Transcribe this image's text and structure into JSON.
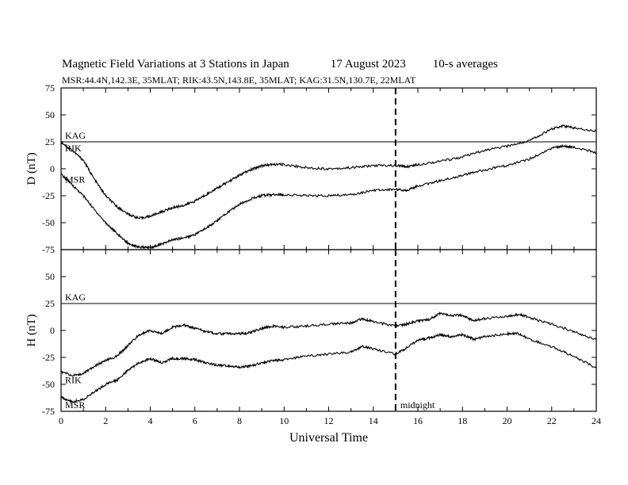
{
  "header": {
    "title": "Magnetic Field Variations at 3 Stations in Japan",
    "date": "17  August   2023",
    "averages": "10-s averages",
    "stations": "MSR:44.4N,142.3E, 35MLAT;  RIK:43.5N,143.8E, 35MLAT;  KAG:31.5N,130.7E, 22MLAT"
  },
  "chart_data": [
    {
      "type": "line",
      "ylabel": "D (nT)",
      "ylim": [
        -75,
        75
      ],
      "yticks": [
        -75,
        -50,
        -25,
        0,
        25,
        50,
        75
      ],
      "xlim": [
        0,
        24
      ],
      "series": [
        {
          "name": "KAG",
          "x": [
            0,
            24
          ],
          "y": [
            25,
            25
          ]
        },
        {
          "name": "RIK",
          "x": [
            0,
            0.5,
            1,
            1.5,
            2,
            2.5,
            3,
            3.5,
            4,
            4.5,
            5,
            5.5,
            6,
            6.5,
            7,
            7.5,
            8,
            8.5,
            9,
            9.5,
            10,
            11,
            12,
            13,
            14,
            15,
            15.5,
            16,
            17,
            18,
            19,
            20,
            21,
            22,
            22.5,
            23,
            24
          ],
          "y": [
            25,
            17,
            8,
            -10,
            -25,
            -35,
            -42,
            -46,
            -44,
            -40,
            -36,
            -34,
            -30,
            -24,
            -18,
            -12,
            -6,
            -1,
            3,
            4,
            4,
            1,
            0,
            1,
            3,
            3,
            2,
            4,
            7,
            11,
            17,
            21,
            26,
            37,
            40,
            38,
            35
          ]
        },
        {
          "name": "MSR",
          "x": [
            0,
            0.5,
            1,
            1.5,
            2,
            2.5,
            3,
            3.5,
            4,
            4.5,
            5,
            5.5,
            6,
            6.5,
            7,
            7.5,
            8,
            8.5,
            9,
            9.5,
            10,
            11,
            12,
            13,
            14,
            15,
            15.5,
            16,
            17,
            18,
            19,
            20,
            21,
            22,
            22.5,
            23,
            24
          ],
          "y": [
            -5,
            -15,
            -25,
            -38,
            -50,
            -60,
            -69,
            -73,
            -73,
            -70,
            -66,
            -64,
            -61,
            -55,
            -48,
            -40,
            -33,
            -28,
            -25,
            -24,
            -24,
            -25,
            -25,
            -24,
            -20,
            -19,
            -20,
            -16,
            -11,
            -6,
            -1,
            3,
            9,
            19,
            21,
            20,
            15
          ]
        }
      ],
      "labels": [
        "KAG",
        "RIK",
        "MSR"
      ]
    },
    {
      "type": "line",
      "ylabel": "H (nT)",
      "ylim": [
        -75,
        75
      ],
      "yticks": [
        -75,
        -50,
        -25,
        0,
        25,
        50,
        75
      ],
      "xlim": [
        0,
        24
      ],
      "xticks": [
        0,
        2,
        4,
        6,
        8,
        10,
        12,
        14,
        16,
        18,
        20,
        22,
        24
      ],
      "xlabel": "Universal Time",
      "series": [
        {
          "name": "KAG",
          "x": [
            0,
            24
          ],
          "y": [
            25,
            25
          ]
        },
        {
          "name": "RIK",
          "x": [
            0,
            0.5,
            1,
            1.5,
            2,
            2.5,
            3,
            3.5,
            4,
            4.5,
            5,
            5.5,
            6,
            6.5,
            7,
            7.5,
            8,
            8.5,
            9,
            9.5,
            10,
            11,
            12,
            13,
            13.5,
            14,
            15,
            15.5,
            16,
            16.5,
            17,
            17.5,
            18,
            18.5,
            19,
            20,
            20.5,
            21,
            22,
            23,
            24
          ],
          "y": [
            -38,
            -42,
            -40,
            -33,
            -28,
            -24,
            -14,
            -4,
            0,
            -3,
            3,
            5,
            2,
            -1,
            -3,
            -3,
            -3,
            -2,
            2,
            4,
            3,
            4,
            6,
            7,
            11,
            8,
            4,
            6,
            9,
            10,
            16,
            14,
            14,
            9,
            11,
            13,
            15,
            12,
            6,
            -1,
            -9
          ]
        },
        {
          "name": "MSR",
          "x": [
            0,
            0.5,
            1,
            1.5,
            2,
            2.5,
            3,
            3.5,
            4,
            4.5,
            5,
            5.5,
            6,
            6.5,
            7,
            7.5,
            8,
            8.5,
            9,
            9.5,
            10,
            11,
            12,
            13,
            13.5,
            14,
            15,
            15.5,
            16,
            16.5,
            17,
            17.5,
            18,
            18.5,
            19,
            20,
            20.5,
            21,
            22,
            23,
            24
          ],
          "y": [
            -62,
            -66,
            -64,
            -57,
            -50,
            -46,
            -37,
            -30,
            -26,
            -30,
            -26,
            -26,
            -27,
            -30,
            -32,
            -33,
            -34,
            -33,
            -30,
            -28,
            -27,
            -24,
            -22,
            -20,
            -15,
            -17,
            -22,
            -16,
            -9,
            -7,
            -4,
            -6,
            -4,
            -8,
            -6,
            -3,
            -3,
            -8,
            -15,
            -24,
            -35
          ]
        }
      ],
      "labels": [
        "KAG",
        "RIK",
        "MSR"
      ],
      "annotations": [
        {
          "x": 15,
          "text": "midnight"
        }
      ]
    }
  ]
}
